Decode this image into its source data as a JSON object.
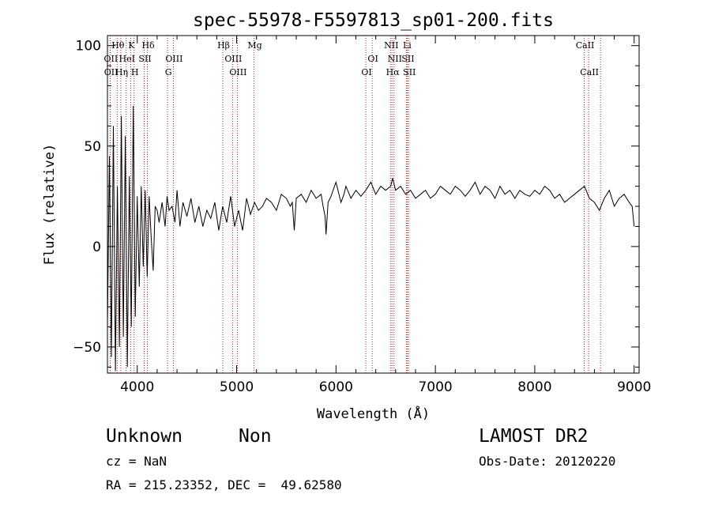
{
  "chart_data": {
    "type": "line",
    "title": "spec-55978-F5597813_sp01-200.fits",
    "xlabel": "Wavelength (Å)",
    "ylabel": "Flux (relative)",
    "xlim": [
      3700,
      9050
    ],
    "ylim": [
      -63,
      105
    ],
    "xticks": [
      4000,
      5000,
      6000,
      7000,
      8000,
      9000
    ],
    "yticks": [
      -50,
      0,
      50,
      100
    ],
    "grid": false,
    "line_color": "#000000",
    "marker_color": "#b22222",
    "series": [
      {
        "x": [
          3700,
          3720,
          3740,
          3760,
          3780,
          3800,
          3820,
          3840,
          3860,
          3880,
          3900,
          3920,
          3940,
          3960,
          3980,
          4000,
          4020,
          4040,
          4060,
          4080,
          4100,
          4120,
          4140,
          4160,
          4180,
          4200,
          4220,
          4250,
          4280,
          4300,
          4320,
          4350,
          4380,
          4400,
          4430,
          4460,
          4500,
          4540,
          4580,
          4620,
          4660,
          4700,
          4740,
          4780,
          4820,
          4860,
          4900,
          4940,
          4980,
          5020,
          5060,
          5100,
          5140,
          5180,
          5220,
          5260,
          5300,
          5350,
          5400,
          5450,
          5500,
          5540,
          5560,
          5580,
          5600,
          5650,
          5700,
          5750,
          5800,
          5850,
          5870,
          5890,
          5900,
          5920,
          5950,
          6000,
          6020,
          6050,
          6080,
          6100,
          6150,
          6200,
          6250,
          6300,
          6350,
          6400,
          6450,
          6500,
          6550,
          6570,
          6600,
          6650,
          6700,
          6750,
          6800,
          6850,
          6900,
          6950,
          7000,
          7050,
          7100,
          7150,
          7200,
          7250,
          7300,
          7350,
          7400,
          7450,
          7500,
          7550,
          7600,
          7650,
          7700,
          7750,
          7800,
          7850,
          7900,
          7950,
          8000,
          8050,
          8100,
          8150,
          8200,
          8250,
          8300,
          8350,
          8400,
          8450,
          8500,
          8550,
          8600,
          8650,
          8700,
          8750,
          8800,
          8850,
          8900,
          8950,
          8980,
          9000
        ],
        "y": [
          -40,
          45,
          -55,
          60,
          -62,
          30,
          -50,
          65,
          -45,
          55,
          -60,
          35,
          -40,
          70,
          -35,
          25,
          -20,
          30,
          -10,
          28,
          -15,
          25,
          5,
          -12,
          20,
          18,
          12,
          22,
          10,
          25,
          18,
          20,
          12,
          28,
          10,
          22,
          15,
          24,
          12,
          20,
          10,
          18,
          14,
          22,
          8,
          20,
          12,
          25,
          10,
          18,
          8,
          24,
          16,
          22,
          18,
          20,
          24,
          22,
          18,
          26,
          24,
          20,
          22,
          8,
          24,
          26,
          22,
          28,
          24,
          26,
          20,
          15,
          6,
          22,
          25,
          32,
          28,
          22,
          26,
          30,
          24,
          28,
          25,
          28,
          32,
          26,
          30,
          28,
          30,
          34,
          28,
          30,
          26,
          28,
          24,
          26,
          28,
          24,
          26,
          30,
          28,
          26,
          30,
          28,
          25,
          28,
          32,
          26,
          30,
          28,
          24,
          30,
          26,
          28,
          24,
          28,
          26,
          25,
          28,
          26,
          30,
          28,
          24,
          26,
          22,
          24,
          26,
          28,
          30,
          24,
          22,
          18,
          24,
          28,
          20,
          24,
          26,
          22,
          20,
          10
        ]
      }
    ],
    "lines": [
      {
        "label": "Hθ",
        "x": 3798,
        "row": 1
      },
      {
        "label": "OII",
        "x": 3727,
        "row": 2
      },
      {
        "label": "OII",
        "x": 3729,
        "row": 3
      },
      {
        "label": "Hη",
        "x": 3835,
        "row": 3
      },
      {
        "label": "K",
        "x": 3934,
        "row": 1
      },
      {
        "label": "HeI",
        "x": 3889,
        "row": 2
      },
      {
        "label": "H",
        "x": 3968,
        "row": 3
      },
      {
        "label": "SII",
        "x": 4070,
        "row": 2
      },
      {
        "label": "Hδ",
        "x": 4102,
        "row": 1
      },
      {
        "label": "OIII",
        "x": 4363,
        "row": 2
      },
      {
        "label": "G",
        "x": 4305,
        "row": 3
      },
      {
        "label": "Hβ",
        "x": 4861,
        "row": 1
      },
      {
        "label": "OIII",
        "x": 4959,
        "row": 2
      },
      {
        "label": "OIII",
        "x": 5007,
        "row": 3
      },
      {
        "label": "Mg",
        "x": 5175,
        "row": 1
      },
      {
        "label": "OI",
        "x": 6364,
        "row": 2
      },
      {
        "label": "OI",
        "x": 6300,
        "row": 3
      },
      {
        "label": "NII",
        "x": 6548,
        "row": 1
      },
      {
        "label": "NII",
        "x": 6584,
        "row": 2
      },
      {
        "label": "Hα",
        "x": 6563,
        "row": 3
      },
      {
        "label": "Li",
        "x": 6708,
        "row": 1
      },
      {
        "label": "SII",
        "x": 6717,
        "row": 2
      },
      {
        "label": "SII",
        "x": 6731,
        "row": 3
      },
      {
        "label": "CaII",
        "x": 8498,
        "row": 1
      },
      {
        "label": "CaII",
        "x": 8542,
        "row": 3
      },
      {
        "label": "",
        "x": 8662,
        "row": 0
      }
    ]
  },
  "footer": {
    "class_label": "Unknown",
    "subclass_label": "Non",
    "survey": "LAMOST DR2",
    "cz": "cz = NaN",
    "obs_date": "Obs-Date: 20120220",
    "coords": "RA = 215.23352, DEC =  49.62580"
  }
}
